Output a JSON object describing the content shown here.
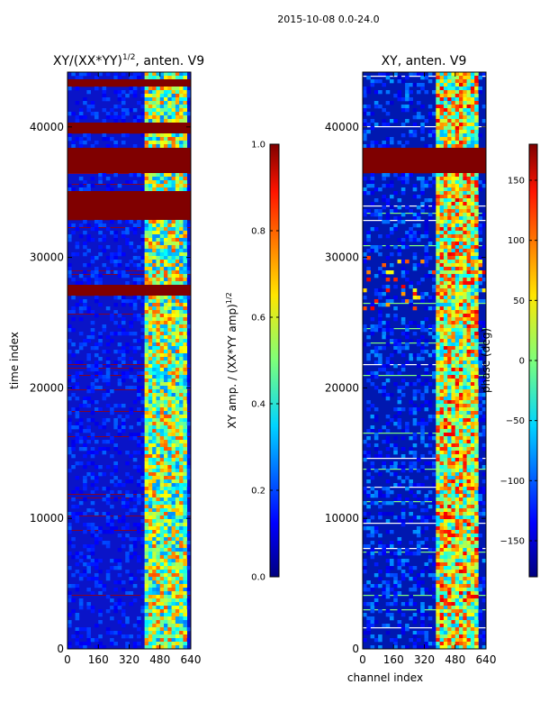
{
  "suptitle": "2015-10-08 0.0-24.0",
  "chart_data": [
    {
      "type": "heatmap",
      "title_main": "XY/(XX*YY)",
      "title_exp": "1/2",
      "title_rest": ", anten. V9",
      "xlabel": "",
      "ylabel": "time index",
      "xlim": [
        0,
        640
      ],
      "ylim": [
        0,
        44200
      ],
      "xticks": [
        "0",
        "160",
        "320",
        "480",
        "640"
      ],
      "yticks": [
        "0",
        "10000",
        "20000",
        "30000",
        "40000"
      ],
      "ytick_values": [
        0,
        10000,
        20000,
        30000,
        40000
      ],
      "xtick_values": [
        0,
        160,
        320,
        480,
        640
      ],
      "active_channel_range": [
        400,
        620
      ],
      "flagged_time_ranges": [
        [
          27000,
          27900
        ],
        [
          33000,
          35000
        ],
        [
          36500,
          38500
        ],
        [
          39600,
          40200
        ],
        [
          43100,
          43700
        ]
      ],
      "colorbar": {
        "label_main": "XY amp. / (XX*YY amp)",
        "label_exp": "1/2",
        "ticks": [
          "0.0",
          "0.2",
          "0.4",
          "0.6",
          "0.8",
          "1.0"
        ],
        "tick_values": [
          0.0,
          0.2,
          0.4,
          0.6,
          0.8,
          1.0
        ],
        "range": [
          0.0,
          1.0
        ]
      }
    },
    {
      "type": "heatmap",
      "title_main": "XY, anten. V9",
      "xlabel": "channel index",
      "ylabel": "",
      "xlim": [
        0,
        640
      ],
      "ylim": [
        0,
        44200
      ],
      "xticks": [
        "0",
        "160",
        "320",
        "480",
        "640"
      ],
      "yticks": [
        "0",
        "10000",
        "20000",
        "30000",
        "40000"
      ],
      "ytick_values": [
        0,
        10000,
        20000,
        30000,
        40000
      ],
      "xtick_values": [
        0,
        160,
        320,
        480,
        640
      ],
      "active_channel_range": [
        390,
        600
      ],
      "flagged_time_ranges": [
        [
          36500,
          38300
        ]
      ],
      "colorbar": {
        "label_main": "phase (deg)",
        "ticks": [
          "150",
          "100",
          "50",
          "0",
          "−50",
          "−100",
          "−150"
        ],
        "tick_values": [
          150,
          100,
          50,
          0,
          -50,
          -100,
          -150
        ],
        "range": [
          -180,
          180
        ]
      }
    }
  ]
}
